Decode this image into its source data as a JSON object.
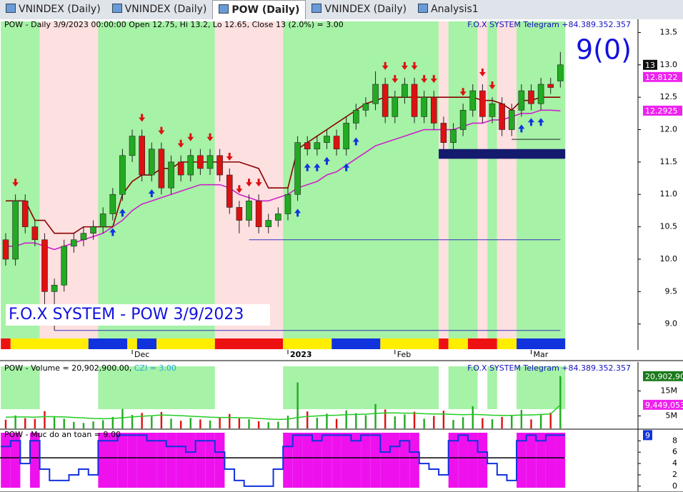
{
  "tabs": [
    "VNINDEX (Daily)",
    "VNINDEX (Daily)",
    "POW (Daily)",
    "VNINDEX (Daily)",
    "Analysis1"
  ],
  "chart_data": [
    {
      "type": "candlestick",
      "title": "POW - Daily 3/9/2023 00:00:00 Open 12.75, Hi 13.2, Lo 12.65, Close 13 (2.0%)  = 3.00",
      "subtitle": "F.O.X SYSTEM Telegram +84.389.352.357",
      "signal_text": "9(0)",
      "annotation": "F.O.X SYSTEM - POW 3/9/2023",
      "categories": [
        null,
        null,
        null,
        null,
        null,
        null,
        null,
        null,
        null,
        null,
        null,
        null,
        null,
        "Dec",
        null,
        null,
        null,
        null,
        null,
        null,
        null,
        null,
        null,
        null,
        null,
        null,
        null,
        null,
        null,
        "2023",
        null,
        null,
        null,
        null,
        null,
        null,
        null,
        null,
        null,
        null,
        "Feb",
        null,
        null,
        null,
        null,
        null,
        null,
        null,
        null,
        null,
        null,
        null,
        null,
        null,
        "Mar",
        null,
        null,
        null
      ],
      "open": [
        10.3,
        10.0,
        10.9,
        10.5,
        10.3,
        9.5,
        9.6,
        10.2,
        10.3,
        10.4,
        10.5,
        10.7,
        11.0,
        11.6,
        11.9,
        11.3,
        11.7,
        11.1,
        11.5,
        11.3,
        11.6,
        11.4,
        11.6,
        11.3,
        10.8,
        10.6,
        10.9,
        10.5,
        10.6,
        10.7,
        11.0,
        11.8,
        11.7,
        11.8,
        11.9,
        11.7,
        12.1,
        12.3,
        12.4,
        12.7,
        12.2,
        12.5,
        12.7,
        12.2,
        12.5,
        12.1,
        11.8,
        12.0,
        12.3,
        12.6,
        12.2,
        12.4,
        12.0,
        12.3,
        12.6,
        12.4,
        12.7,
        12.75
      ],
      "high": [
        10.4,
        11.0,
        11.0,
        10.6,
        10.4,
        9.7,
        10.3,
        10.4,
        10.5,
        10.6,
        10.8,
        11.1,
        11.7,
        12.0,
        12.0,
        11.8,
        11.8,
        11.6,
        11.6,
        11.7,
        11.7,
        11.7,
        11.7,
        11.4,
        10.9,
        11.0,
        11.0,
        10.7,
        10.8,
        11.1,
        11.9,
        11.9,
        11.9,
        12.0,
        12.0,
        12.2,
        12.4,
        12.5,
        12.9,
        12.8,
        12.6,
        12.8,
        12.8,
        12.6,
        12.6,
        12.2,
        12.1,
        12.4,
        12.7,
        12.7,
        12.5,
        12.5,
        12.4,
        12.7,
        12.7,
        12.8,
        12.8,
        13.2
      ],
      "low": [
        9.9,
        9.9,
        10.4,
        10.2,
        9.2,
        8.9,
        9.5,
        10.1,
        10.2,
        10.3,
        10.4,
        10.6,
        10.9,
        11.5,
        11.2,
        11.2,
        11.0,
        11.0,
        11.2,
        11.2,
        11.3,
        11.3,
        11.2,
        10.7,
        10.4,
        10.5,
        10.4,
        10.4,
        10.5,
        10.6,
        10.9,
        11.6,
        11.6,
        11.7,
        11.6,
        11.6,
        12.0,
        12.2,
        12.3,
        12.1,
        12.1,
        12.4,
        12.1,
        12.1,
        12.0,
        11.6,
        11.7,
        11.9,
        12.2,
        12.1,
        12.1,
        11.9,
        11.9,
        12.2,
        12.3,
        12.3,
        12.55,
        12.65
      ],
      "close": [
        10.0,
        10.9,
        10.5,
        10.3,
        9.5,
        9.6,
        10.2,
        10.3,
        10.4,
        10.5,
        10.7,
        11.0,
        11.6,
        11.9,
        11.3,
        11.7,
        11.1,
        11.5,
        11.3,
        11.6,
        11.4,
        11.6,
        11.3,
        10.8,
        10.6,
        10.9,
        10.5,
        10.6,
        10.7,
        11.0,
        11.8,
        11.7,
        11.8,
        11.9,
        11.7,
        12.1,
        12.3,
        12.4,
        12.7,
        12.2,
        12.5,
        12.7,
        12.2,
        12.5,
        12.1,
        11.8,
        12.0,
        12.3,
        12.6,
        12.2,
        12.4,
        12.0,
        12.3,
        12.6,
        12.4,
        12.7,
        12.65,
        13.0
      ],
      "up_color": "#22aa22",
      "down_color": "#dd1111",
      "lines": [
        {
          "color": "#cc22cc",
          "values": [
            10.2,
            10.2,
            10.25,
            10.25,
            10.2,
            10.15,
            10.2,
            10.25,
            10.3,
            10.35,
            10.4,
            10.5,
            10.6,
            10.75,
            10.85,
            10.9,
            10.95,
            11.0,
            11.05,
            11.1,
            11.15,
            11.15,
            11.15,
            11.1,
            11.0,
            10.95,
            10.9,
            10.9,
            10.95,
            11.0,
            11.1,
            11.15,
            11.2,
            11.3,
            11.35,
            11.45,
            11.55,
            11.65,
            11.75,
            11.8,
            11.85,
            11.9,
            11.95,
            12.0,
            12.0,
            12.0,
            12.0,
            12.05,
            12.1,
            12.1,
            12.15,
            12.15,
            12.2,
            12.25,
            12.25,
            12.3,
            12.3,
            12.29
          ]
        },
        {
          "color": "#8b0000",
          "values": [
            10.9,
            10.9,
            10.9,
            10.6,
            10.6,
            10.4,
            10.4,
            10.4,
            10.5,
            10.5,
            10.5,
            10.5,
            11.0,
            11.2,
            11.3,
            11.3,
            11.4,
            11.4,
            11.5,
            11.5,
            11.5,
            11.5,
            11.5,
            11.5,
            11.5,
            11.45,
            11.4,
            11.1,
            11.1,
            11.1,
            11.7,
            11.8,
            11.9,
            12.0,
            12.1,
            12.2,
            12.3,
            12.4,
            12.45,
            12.5,
            12.5,
            12.5,
            12.5,
            12.5,
            12.5,
            12.5,
            12.5,
            12.5,
            12.5,
            12.45,
            12.45,
            12.4,
            12.3,
            12.45,
            12.45,
            12.5,
            12.5,
            12.5
          ]
        }
      ],
      "zones": [
        {
          "from": 0,
          "to": 3,
          "color": "#a6f2a6"
        },
        {
          "from": 4,
          "to": 9,
          "color": "#fde0e0"
        },
        {
          "from": 10,
          "to": 21,
          "color": "#a6f2a6"
        },
        {
          "from": 22,
          "to": 28,
          "color": "#fde0e0"
        },
        {
          "from": 29,
          "to": 44,
          "color": "#a6f2a6"
        },
        {
          "from": 45,
          "to": 45,
          "color": "#fde0e0"
        },
        {
          "from": 46,
          "to": 48,
          "color": "#a6f2a6"
        },
        {
          "from": 49,
          "to": 49,
          "color": "#fde0e0"
        },
        {
          "from": 50,
          "to": 50,
          "color": "#a6f2a6"
        },
        {
          "from": 51,
          "to": 52,
          "color": "#fde0e0"
        },
        {
          "from": 53,
          "to": 57,
          "color": "#a6f2a6"
        }
      ],
      "strip": [
        {
          "from": 0,
          "to": 0,
          "color": "#ee1111"
        },
        {
          "from": 1,
          "to": 8,
          "color": "#ffee00"
        },
        {
          "from": 9,
          "to": 12,
          "color": "#1133dd"
        },
        {
          "from": 13,
          "to": 13,
          "color": "#ffee00"
        },
        {
          "from": 14,
          "to": 15,
          "color": "#1133dd"
        },
        {
          "from": 16,
          "to": 21,
          "color": "#ffee00"
        },
        {
          "from": 22,
          "to": 28,
          "color": "#ee1111"
        },
        {
          "from": 29,
          "to": 33,
          "color": "#ffee00"
        },
        {
          "from": 34,
          "to": 38,
          "color": "#1133dd"
        },
        {
          "from": 39,
          "to": 44,
          "color": "#ffee00"
        },
        {
          "from": 45,
          "to": 45,
          "color": "#ee1111"
        },
        {
          "from": 46,
          "to": 47,
          "color": "#ffee00"
        },
        {
          "from": 48,
          "to": 50,
          "color": "#ee1111"
        },
        {
          "from": 51,
          "to": 52,
          "color": "#ffee00"
        },
        {
          "from": 53,
          "to": 57,
          "color": "#1133dd"
        }
      ],
      "sell": [
        1,
        14,
        16,
        18,
        19,
        21,
        23,
        24,
        25,
        26,
        39,
        40,
        41,
        42,
        43,
        44,
        47,
        49,
        50
      ],
      "buy": [
        11,
        12,
        15,
        30,
        31,
        32,
        33,
        35,
        36,
        53,
        54,
        55
      ],
      "levels": [
        {
          "value": 10.3,
          "from": 25,
          "to": 57,
          "color": "#3333bb"
        },
        {
          "value": 8.9,
          "from": 5,
          "to": 57,
          "color": "#3333bb"
        },
        {
          "value": 11.85,
          "from": 52,
          "to": 57,
          "color": "#222222"
        }
      ],
      "box": {
        "low": 11.55,
        "high": 11.7,
        "from": 45,
        "to": 57,
        "color": "#141a6e"
      },
      "markers": [
        {
          "value": 13,
          "color": "#111111"
        },
        {
          "value": 12.8122,
          "color": "#ee22ee"
        },
        {
          "value": 12.2925,
          "color": "#ee22ee"
        }
      ],
      "ylim": [
        8.6,
        13.67
      ],
      "yticks": [
        {
          "value": 9,
          "label": "9.0"
        },
        9.5,
        {
          "value": 10,
          "label": "10.0"
        },
        10.5,
        {
          "value": 11,
          "label": "11.0"
        },
        11.5,
        {
          "value": 12,
          "label": "12.0"
        },
        12.5,
        {
          "value": 13,
          "label": "13.0"
        },
        13.5
      ]
    },
    {
      "type": "bar",
      "title": "POW - Volume = 20,902,900.00, ",
      "title_extra": "CZI = 3.00",
      "subtitle": "F.O.X SYSTEM Telegram +84.389.352.357",
      "values": [
        3500000,
        5200000,
        4100000,
        3800000,
        6900000,
        4500000,
        3900000,
        2600000,
        2200000,
        2800000,
        3300000,
        4600000,
        7800000,
        5400000,
        6200000,
        4800000,
        6600000,
        3900000,
        3100000,
        4200000,
        3600000,
        3200000,
        4400000,
        5800000,
        4000000,
        3700000,
        2900000,
        2500000,
        2700000,
        5100000,
        18400000,
        6800000,
        4300000,
        5900000,
        3800000,
        7200000,
        6100000,
        5300000,
        9800000,
        7600000,
        4800000,
        5600000,
        6700000,
        3900000,
        5000000,
        7100000,
        3400000,
        4500000,
        8900000,
        4100000,
        3700000,
        4600000,
        5200000,
        7400000,
        3600000,
        5800000,
        6300000,
        20902900
      ],
      "ma": [
        4500000,
        4600000,
        4600000,
        4500000,
        4700000,
        4700000,
        4600000,
        4400000,
        4200000,
        4000000,
        3900000,
        4000000,
        4300000,
        4600000,
        4900000,
        5100000,
        5400000,
        5300000,
        5100000,
        4900000,
        4700000,
        4500000,
        4400000,
        4400000,
        4300000,
        4200000,
        4000000,
        3800000,
        3600000,
        3700000,
        4400000,
        4800000,
        5000000,
        5200000,
        5300000,
        5500000,
        5600000,
        5700000,
        6000000,
        6200000,
        6200000,
        6100000,
        6100000,
        5900000,
        5800000,
        5800000,
        5600000,
        5500000,
        5600000,
        5500000,
        5300000,
        5200000,
        5200000,
        5400000,
        5400000,
        5600000,
        5800000,
        9449053
      ],
      "ma_color": "#22cc22",
      "markers": [
        {
          "value": 20902900,
          "label": "20,902,900",
          "color": "#1a7a1a"
        },
        {
          "value": 9449053,
          "label": "9,449,053",
          "color": "#ee22ee"
        }
      ],
      "ylim": [
        0,
        25700000
      ],
      "yticks": [
        {
          "value": 5000000,
          "label": "5M"
        },
        {
          "value": 15000000,
          "label": "15M"
        }
      ]
    },
    {
      "type": "step",
      "title": "POW - Muc do an toan = 9.00",
      "values": [
        7,
        8,
        4,
        8,
        3,
        1,
        1,
        2,
        3,
        2,
        8,
        8,
        9,
        9,
        9,
        8,
        8,
        7,
        7,
        6,
        8,
        8,
        6,
        3,
        1,
        0,
        0,
        0,
        3,
        7,
        9,
        9,
        8,
        9,
        9,
        9,
        8,
        9,
        9,
        6,
        7,
        8,
        6,
        4,
        3,
        2,
        8,
        9,
        8,
        6,
        4,
        2,
        1,
        8,
        9,
        8,
        9,
        9
      ],
      "threshold": 5,
      "line_color": "#1133dd",
      "fill_color": "#ee11ee",
      "markers": [
        {
          "value": 9,
          "color": "#1133dd"
        }
      ],
      "ylim": [
        -0.9,
        9.8
      ],
      "yticks": [
        0,
        2,
        4,
        6,
        8
      ]
    }
  ]
}
